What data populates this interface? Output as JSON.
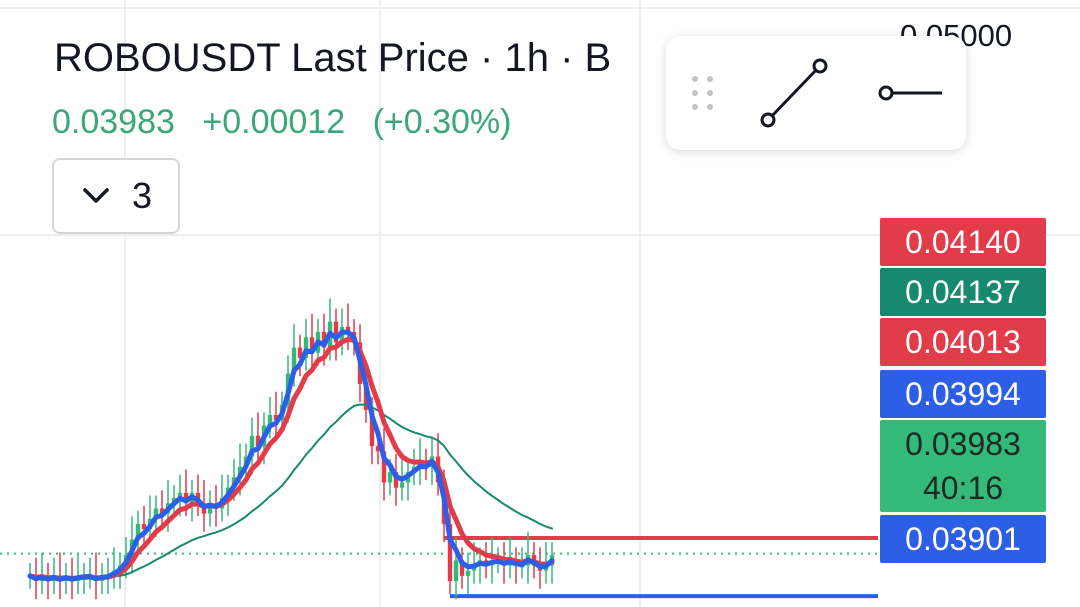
{
  "header": {
    "title": "ROBOUSDT Last Price · 1h · B",
    "last_price": "0.03983",
    "change_abs": "+0.00012",
    "change_pct": "(+0.30%)",
    "indicator_count": "3"
  },
  "axis": {
    "top_tick": "0.05000"
  },
  "price_labels": [
    {
      "value": "0.04140",
      "color": "#e23b4a"
    },
    {
      "value": "0.04137",
      "color": "#168a6e"
    },
    {
      "value": "0.04013",
      "color": "#e23b4a"
    },
    {
      "value": "0.03994",
      "color": "#2c5fe6"
    },
    {
      "value": "0.03983",
      "sub": "40:16",
      "color": "#35b97a"
    },
    {
      "value": "0.03901",
      "color": "#2c5fe6"
    }
  ],
  "colors": {
    "up": "#35b97a",
    "down": "#e23b4a",
    "ema_fast": "#2c5fe6",
    "ema_slow": "#e23b4a",
    "ema_long": "#168a6e",
    "grid": "#eeeeee"
  },
  "chart_data": {
    "type": "candlestick",
    "symbol": "ROBOUSDT",
    "interval": "1h",
    "ylim": [
      0.0388,
      0.0505
    ],
    "y_ticks": [
      0.05
    ],
    "close": [
      0.0394,
      0.0393,
      0.0394,
      0.0393,
      0.0394,
      0.0393,
      0.0394,
      0.0393,
      0.0394,
      0.0394,
      0.0394,
      0.0393,
      0.0394,
      0.0394,
      0.0395,
      0.0396,
      0.0398,
      0.0401,
      0.0404,
      0.0403,
      0.0405,
      0.0407,
      0.0406,
      0.0408,
      0.0409,
      0.041,
      0.0408,
      0.041,
      0.0408,
      0.0406,
      0.0408,
      0.0407,
      0.0409,
      0.0411,
      0.0413,
      0.0415,
      0.0417,
      0.0421,
      0.0419,
      0.0423,
      0.0425,
      0.0424,
      0.0427,
      0.0433,
      0.0438,
      0.0436,
      0.044,
      0.0437,
      0.0441,
      0.0438,
      0.0443,
      0.0439,
      0.0442,
      0.0441,
      0.0439,
      0.0431,
      0.0426,
      0.0419,
      0.0418,
      0.0412,
      0.0414,
      0.0411,
      0.0412,
      0.0414,
      0.0415,
      0.0416,
      0.0415,
      0.0417,
      0.0412,
      0.0404,
      0.0393,
      0.0397,
      0.0394,
      0.0395,
      0.0396,
      0.0397,
      0.0396,
      0.0397,
      0.0397,
      0.0396,
      0.0397,
      0.0396,
      0.0396,
      0.0398,
      0.0396,
      0.0395,
      0.0396,
      0.0398
    ],
    "levels": [
      {
        "value": 0.04013,
        "color": "#e23b4a"
      },
      {
        "value": 0.03901,
        "color": "#2c5fe6"
      },
      {
        "value": 0.03983,
        "color": "#35b97a",
        "style": "dotted"
      }
    ]
  }
}
